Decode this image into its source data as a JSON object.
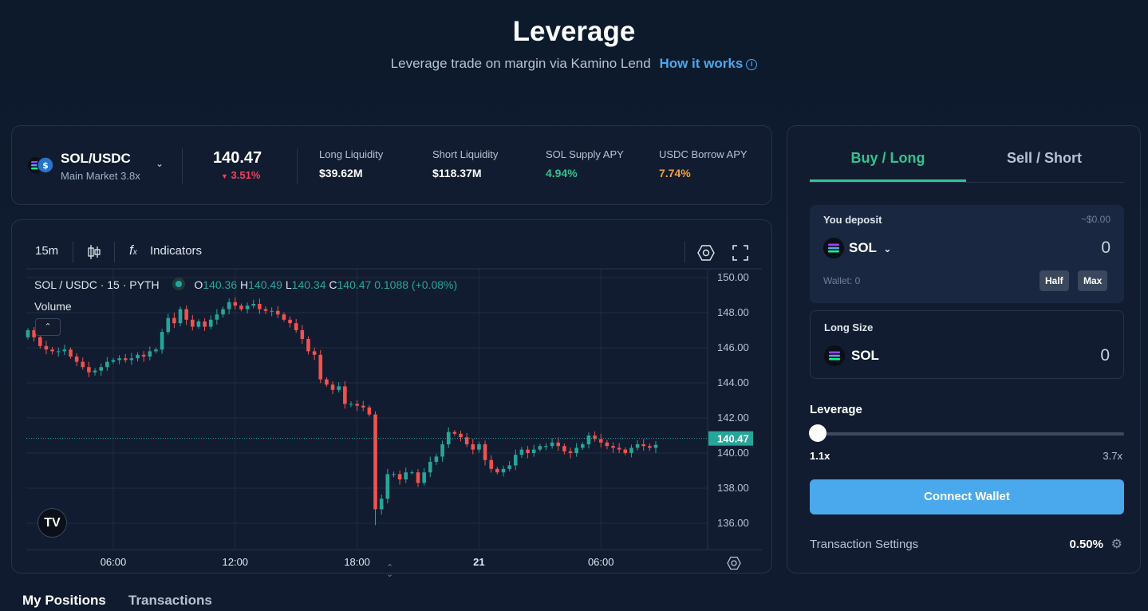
{
  "header": {
    "title": "Leverage",
    "subtitle": "Leverage trade on margin via Kamino Lend",
    "how_it_works": "How it works",
    "info_icon": "info-icon"
  },
  "market": {
    "pair": "SOL/USDC",
    "market_label": "Main Market",
    "max_leverage": "3.8x",
    "price": "140.47",
    "change": "3.51%",
    "change_direction": "down",
    "stats": [
      {
        "label": "Long Liquidity",
        "value": "$39.62M"
      },
      {
        "label": "Short Liquidity",
        "value": "$118.37M"
      },
      {
        "label": "SOL Supply APY",
        "value": "4.94%"
      },
      {
        "label": "USDC Borrow APY",
        "value": "7.74%"
      }
    ],
    "colors": {
      "up": "#31c48d",
      "down": "#f0425e",
      "accent": "#4aa8ec",
      "borrow": "#f5a043"
    }
  },
  "chart": {
    "interval": "15m",
    "indicators_label": "Indicators",
    "legend": {
      "symbol": "SOL / USDC · 15 · PYTH",
      "o_label": "O",
      "o": "140.36",
      "h_label": "H",
      "h": "140.49",
      "l_label": "L",
      "l": "140.34",
      "c_label": "C",
      "c": "140.47",
      "change": "0.1088 (+0.08%)"
    },
    "volume_label": "Volume",
    "tv_logo": "TV",
    "last_price": "140.47"
  },
  "chart_data": {
    "type": "candlestick",
    "title": "SOL / USDC · 15 · PYTH",
    "y_ticks": [
      "150.00",
      "148.00",
      "146.00",
      "144.00",
      "142.00",
      "140.00",
      "138.00",
      "136.00"
    ],
    "ylim": [
      135.3,
      150.2
    ],
    "x_ticks": [
      "06:00",
      "12:00",
      "18:00",
      "21",
      "06:00"
    ],
    "x_tick_index": [
      14,
      34,
      54,
      74,
      94
    ],
    "n_bars": 104,
    "closes": [
      147.0,
      146.6,
      146.1,
      145.9,
      145.8,
      145.8,
      145.9,
      145.5,
      145.2,
      144.9,
      144.6,
      144.7,
      144.9,
      145.2,
      145.3,
      145.4,
      145.3,
      145.4,
      145.6,
      145.5,
      145.8,
      145.9,
      146.9,
      147.7,
      147.4,
      148.2,
      147.6,
      147.2,
      147.5,
      147.2,
      147.6,
      147.9,
      148.2,
      148.6,
      148.4,
      148.2,
      148.4,
      148.5,
      148.2,
      148.1,
      148.1,
      147.9,
      147.6,
      147.4,
      147.0,
      146.5,
      145.8,
      145.6,
      144.2,
      143.9,
      143.6,
      143.8,
      142.8,
      142.8,
      142.7,
      142.6,
      142.2,
      136.8,
      137.4,
      138.8,
      138.8,
      138.5,
      138.9,
      138.9,
      138.3,
      138.9,
      139.5,
      139.8,
      140.5,
      141.2,
      141.1,
      140.9,
      140.5,
      140.2,
      140.5,
      139.6,
      139.1,
      138.9,
      139.1,
      139.3,
      139.9,
      140.2,
      140.0,
      140.2,
      140.4,
      140.4,
      140.6,
      140.4,
      140.1,
      140.0,
      140.3,
      140.5,
      141.0,
      140.8,
      140.6,
      140.4,
      140.3,
      140.2,
      140.0,
      140.3,
      140.5,
      140.4,
      140.3,
      140.47
    ]
  },
  "trade": {
    "tabs": [
      "Buy / Long",
      "Sell / Short"
    ],
    "deposit": {
      "label": "You deposit",
      "usd": "~$0.00",
      "token": "SOL",
      "amount": "0",
      "wallet": "Wallet: 0",
      "half": "Half",
      "max": "Max"
    },
    "long_size": {
      "label": "Long Size",
      "token": "SOL",
      "amount": "0"
    },
    "leverage": {
      "label": "Leverage",
      "min": "1.1x",
      "max": "3.7x",
      "value": 1.1
    },
    "connect": "Connect Wallet",
    "tx_settings": {
      "label": "Transaction Settings",
      "value": "0.50%"
    }
  },
  "bottom_tabs": [
    "My Positions",
    "Transactions"
  ]
}
